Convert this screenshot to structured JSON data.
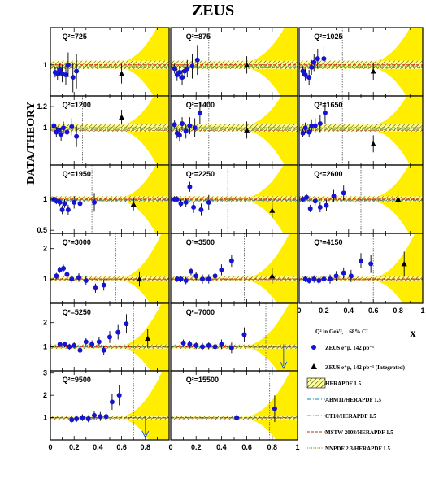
{
  "chart_data": {
    "type": "scatter",
    "title": "ZEUS",
    "ylabel": "DATA/THEORY",
    "xlabel": "x",
    "xlim": [
      0,
      1
    ],
    "legend": {
      "header": "Q² in GeV², ↓ 68% CI",
      "entries": [
        {
          "label": "ZEUS e⁺p, 142 pb⁻¹",
          "symbol": "circle",
          "color": "#1414d2"
        },
        {
          "label": "ZEUS e⁺p, 142 pb⁻¹ (Integrated)",
          "symbol": "triangle",
          "color": "#000000"
        },
        {
          "label": "HERAPDF 1.5",
          "symbol": "hatched-band",
          "color": "#000000"
        },
        {
          "label": "ABM11/HERAPDF 1.5",
          "symbol": "dash-dot",
          "color": "#2aa6c8"
        },
        {
          "label": "CT10/HERAPDF 1.5",
          "symbol": "dash-dot",
          "color": "#e08a8a"
        },
        {
          "label": "MSTW 2008/HERAPDF 1.5",
          "symbol": "dashed",
          "color": "#b4643c"
        },
        {
          "label": "NNPDF 2.3/HERAPDF 1.5",
          "symbol": "dotted",
          "color": "#8aa020"
        }
      ]
    },
    "x_ticks": [
      "0",
      "0.2",
      "0.4",
      "0.6",
      "0.8",
      "1"
    ],
    "rows": [
      {
        "ylim": [
          0.75,
          1.3
        ],
        "yticks": [
          {
            "v": 1,
            "label": "1"
          }
        ]
      },
      {
        "ylim": [
          0.65,
          1.3
        ],
        "yticks": [
          {
            "v": 1,
            "label": "1"
          },
          {
            "v": 1.2,
            "label": "1.2"
          }
        ]
      },
      {
        "ylim": [
          0.45,
          1.55
        ],
        "yticks": [
          {
            "v": 0.5,
            "label": "0.5"
          },
          {
            "v": 1,
            "label": "1"
          }
        ]
      },
      {
        "ylim": [
          0.2,
          2.5
        ],
        "yticks": [
          {
            "v": 1,
            "label": "1"
          },
          {
            "v": 2,
            "label": "2"
          }
        ]
      },
      {
        "ylim": [
          0.0,
          2.8
        ],
        "yticks": [
          {
            "v": 1,
            "label": "1"
          },
          {
            "v": 2,
            "label": "2"
          }
        ]
      },
      {
        "ylim": [
          0.0,
          3.1
        ],
        "yticks": [
          {
            "v": 1,
            "label": "1"
          },
          {
            "v": 2,
            "label": "2"
          },
          {
            "v": 3,
            "label": "3"
          }
        ]
      }
    ],
    "panels": [
      {
        "label": "Q²=725",
        "row": 0,
        "col": 0,
        "xcut": 0.25,
        "points": [
          [
            0.04,
            0.94,
            0.04
          ],
          [
            0.06,
            0.93,
            0.05
          ],
          [
            0.08,
            0.96,
            0.05
          ],
          [
            0.1,
            0.93,
            0.07
          ],
          [
            0.13,
            0.92,
            0.08
          ],
          [
            0.15,
            1.0,
            0.1
          ],
          [
            0.19,
            0.9,
            0.12
          ],
          [
            0.22,
            0.95,
            0.14
          ]
        ],
        "tri": [
          0.6,
          0.93,
          0.08
        ]
      },
      {
        "label": "Q²=875",
        "row": 0,
        "col": 1,
        "xcut": 0.3,
        "points": [
          [
            0.03,
            0.97,
            0.04
          ],
          [
            0.05,
            0.92,
            0.05
          ],
          [
            0.07,
            0.94,
            0.05
          ],
          [
            0.09,
            0.9,
            0.06
          ],
          [
            0.11,
            0.95,
            0.06
          ],
          [
            0.13,
            0.97,
            0.07
          ],
          [
            0.17,
            0.99,
            0.1
          ],
          [
            0.21,
            1.04,
            0.12
          ]
        ],
        "tri": [
          0.6,
          1.0,
          0.07
        ]
      },
      {
        "label": "Q²=1025",
        "row": 0,
        "col": 2,
        "xcut": 0.35,
        "points": [
          [
            0.03,
            0.95,
            0.04
          ],
          [
            0.05,
            0.92,
            0.05
          ],
          [
            0.08,
            0.9,
            0.06
          ],
          [
            0.1,
            0.98,
            0.06
          ],
          [
            0.12,
            1.02,
            0.07
          ],
          [
            0.15,
            1.05,
            0.08
          ],
          [
            0.2,
            1.05,
            0.1
          ]
        ],
        "tri": [
          0.6,
          0.95,
          0.07
        ]
      },
      {
        "label": "Q²=1200",
        "row": 1,
        "col": 0,
        "xcut": 0.27,
        "points": [
          [
            0.03,
            1.02,
            0.04
          ],
          [
            0.05,
            0.96,
            0.05
          ],
          [
            0.07,
            0.98,
            0.05
          ],
          [
            0.09,
            0.94,
            0.06
          ],
          [
            0.11,
            1.0,
            0.06
          ],
          [
            0.14,
            0.96,
            0.07
          ],
          [
            0.18,
            1.01,
            0.08
          ],
          [
            0.22,
            0.92,
            0.1
          ]
        ],
        "tri": [
          0.6,
          1.1,
          0.07
        ]
      },
      {
        "label": "Q²=1400",
        "row": 1,
        "col": 1,
        "xcut": 0.3,
        "points": [
          [
            0.03,
            1.03,
            0.04
          ],
          [
            0.05,
            0.95,
            0.05
          ],
          [
            0.07,
            0.93,
            0.06
          ],
          [
            0.09,
            1.04,
            0.06
          ],
          [
            0.12,
            0.97,
            0.07
          ],
          [
            0.15,
            1.02,
            0.08
          ],
          [
            0.19,
            1.0,
            0.09
          ],
          [
            0.23,
            1.14,
            0.1
          ]
        ],
        "tri": [
          0.6,
          0.98,
          0.08
        ]
      },
      {
        "label": "Q²=1650",
        "row": 1,
        "col": 2,
        "xcut": 0.35,
        "points": [
          [
            0.03,
            0.95,
            0.04
          ],
          [
            0.05,
            1.0,
            0.05
          ],
          [
            0.08,
            0.96,
            0.05
          ],
          [
            0.1,
            1.02,
            0.06
          ],
          [
            0.13,
            1.02,
            0.07
          ],
          [
            0.17,
            1.04,
            0.08
          ],
          [
            0.21,
            1.14,
            0.1
          ]
        ],
        "tri": [
          0.6,
          0.85,
          0.08
        ]
      },
      {
        "label": "Q²=1950",
        "row": 2,
        "col": 0,
        "xcut": 0.35,
        "points": [
          [
            0.03,
            1.0,
            0.05
          ],
          [
            0.05,
            0.97,
            0.05
          ],
          [
            0.08,
            0.95,
            0.06
          ],
          [
            0.1,
            0.83,
            0.07
          ],
          [
            0.12,
            0.93,
            0.07
          ],
          [
            0.15,
            0.83,
            0.08
          ],
          [
            0.2,
            0.95,
            0.1
          ],
          [
            0.25,
            0.93,
            0.12
          ],
          [
            0.37,
            0.95,
            0.15
          ]
        ],
        "tri": [
          0.7,
          0.92,
          0.1
        ]
      },
      {
        "label": "Q²=2250",
        "row": 2,
        "col": 1,
        "xcut": 0.45,
        "points": [
          [
            0.03,
            1.0,
            0.05
          ],
          [
            0.05,
            1.0,
            0.05
          ],
          [
            0.08,
            0.93,
            0.06
          ],
          [
            0.12,
            0.95,
            0.07
          ],
          [
            0.15,
            1.2,
            0.08
          ],
          [
            0.18,
            0.87,
            0.09
          ],
          [
            0.24,
            0.83,
            0.1
          ],
          [
            0.3,
            0.95,
            0.12
          ]
        ],
        "tri": [
          0.8,
          0.82,
          0.12
        ]
      },
      {
        "label": "Q²=2600",
        "row": 2,
        "col": 2,
        "xcut": 0.5,
        "points": [
          [
            0.03,
            1.0,
            0.05
          ],
          [
            0.06,
            1.03,
            0.05
          ],
          [
            0.09,
            0.85,
            0.06
          ],
          [
            0.13,
            0.97,
            0.07
          ],
          [
            0.17,
            0.87,
            0.08
          ],
          [
            0.22,
            0.9,
            0.09
          ],
          [
            0.28,
            1.05,
            0.1
          ],
          [
            0.36,
            1.1,
            0.12
          ]
        ],
        "tri": [
          0.8,
          1.0,
          0.15
        ]
      },
      {
        "label": "Q²=3000",
        "row": 3,
        "col": 0,
        "xcut": 0.55,
        "points": [
          [
            0.05,
            1.1,
            0.1
          ],
          [
            0.08,
            1.3,
            0.1
          ],
          [
            0.11,
            1.35,
            0.12
          ],
          [
            0.14,
            1.15,
            0.12
          ],
          [
            0.18,
            1.0,
            0.13
          ],
          [
            0.24,
            1.05,
            0.14
          ],
          [
            0.3,
            0.95,
            0.15
          ],
          [
            0.38,
            0.7,
            0.15
          ],
          [
            0.45,
            0.8,
            0.18
          ]
        ],
        "tri": [
          0.75,
          1.0,
          0.25
        ]
      },
      {
        "label": "Q²=3500",
        "row": 3,
        "col": 1,
        "xcut": 0.58,
        "points": [
          [
            0.05,
            1.0,
            0.1
          ],
          [
            0.08,
            1.0,
            0.1
          ],
          [
            0.12,
            0.95,
            0.12
          ],
          [
            0.16,
            1.25,
            0.13
          ],
          [
            0.2,
            1.1,
            0.14
          ],
          [
            0.25,
            1.0,
            0.15
          ],
          [
            0.3,
            1.0,
            0.15
          ],
          [
            0.35,
            1.1,
            0.16
          ],
          [
            0.4,
            1.3,
            0.18
          ],
          [
            0.48,
            1.6,
            0.2
          ]
        ],
        "tri": [
          0.8,
          1.1,
          0.25
        ]
      },
      {
        "label": "Q²=4150",
        "row": 3,
        "col": 2,
        "xcut": 0.6,
        "points": [
          [
            0.05,
            1.0,
            0.1
          ],
          [
            0.08,
            0.95,
            0.1
          ],
          [
            0.12,
            1.0,
            0.12
          ],
          [
            0.16,
            0.95,
            0.13
          ],
          [
            0.2,
            1.0,
            0.14
          ],
          [
            0.25,
            1.0,
            0.15
          ],
          [
            0.3,
            1.1,
            0.16
          ],
          [
            0.36,
            1.2,
            0.18
          ],
          [
            0.42,
            1.1,
            0.2
          ],
          [
            0.5,
            1.6,
            0.25
          ],
          [
            0.58,
            1.5,
            0.3
          ]
        ],
        "tri": [
          0.85,
          1.5,
          0.4
        ]
      },
      {
        "label": "Q²=5250",
        "row": 4,
        "col": 0,
        "xcut": 0.7,
        "points": [
          [
            0.08,
            1.1,
            0.1
          ],
          [
            0.12,
            1.1,
            0.12
          ],
          [
            0.16,
            1.0,
            0.12
          ],
          [
            0.2,
            1.05,
            0.13
          ],
          [
            0.25,
            0.85,
            0.14
          ],
          [
            0.3,
            1.2,
            0.15
          ],
          [
            0.35,
            1.1,
            0.16
          ],
          [
            0.41,
            1.2,
            0.2
          ],
          [
            0.45,
            0.85,
            0.2
          ],
          [
            0.5,
            1.4,
            0.25
          ],
          [
            0.57,
            1.6,
            0.3
          ],
          [
            0.64,
            1.95,
            0.4
          ]
        ],
        "tri": [
          0.82,
          1.35,
          0.4
        ]
      },
      {
        "label": "Q²=7000",
        "row": 4,
        "col": 1,
        "xcut": 0.75,
        "points": [
          [
            0.1,
            1.15,
            0.15
          ],
          [
            0.15,
            1.1,
            0.15
          ],
          [
            0.2,
            1.05,
            0.15
          ],
          [
            0.25,
            1.0,
            0.16
          ],
          [
            0.3,
            1.05,
            0.16
          ],
          [
            0.35,
            1.0,
            0.17
          ],
          [
            0.4,
            1.1,
            0.2
          ],
          [
            0.48,
            0.95,
            0.22
          ],
          [
            0.58,
            1.5,
            0.3
          ]
        ],
        "tri": null,
        "arrow": 0.89
      },
      {
        "label": "Q²=9500",
        "row": 5,
        "col": 0,
        "xcut": 0.7,
        "points": [
          [
            0.18,
            0.9,
            0.15
          ],
          [
            0.22,
            0.95,
            0.15
          ],
          [
            0.27,
            1.0,
            0.15
          ],
          [
            0.32,
            0.95,
            0.16
          ],
          [
            0.37,
            1.1,
            0.18
          ],
          [
            0.42,
            1.05,
            0.2
          ],
          [
            0.47,
            1.05,
            0.2
          ],
          [
            0.52,
            1.7,
            0.35
          ],
          [
            0.58,
            2.0,
            0.45
          ]
        ],
        "tri": null,
        "arrow": 0.8
      },
      {
        "label": "Q²=15500",
        "row": 5,
        "col": 1,
        "xcut": 0.78,
        "points": [
          [
            0.52,
            1.0,
            0.12
          ],
          [
            0.82,
            1.4,
            0.6
          ]
        ],
        "tri": null
      }
    ]
  }
}
